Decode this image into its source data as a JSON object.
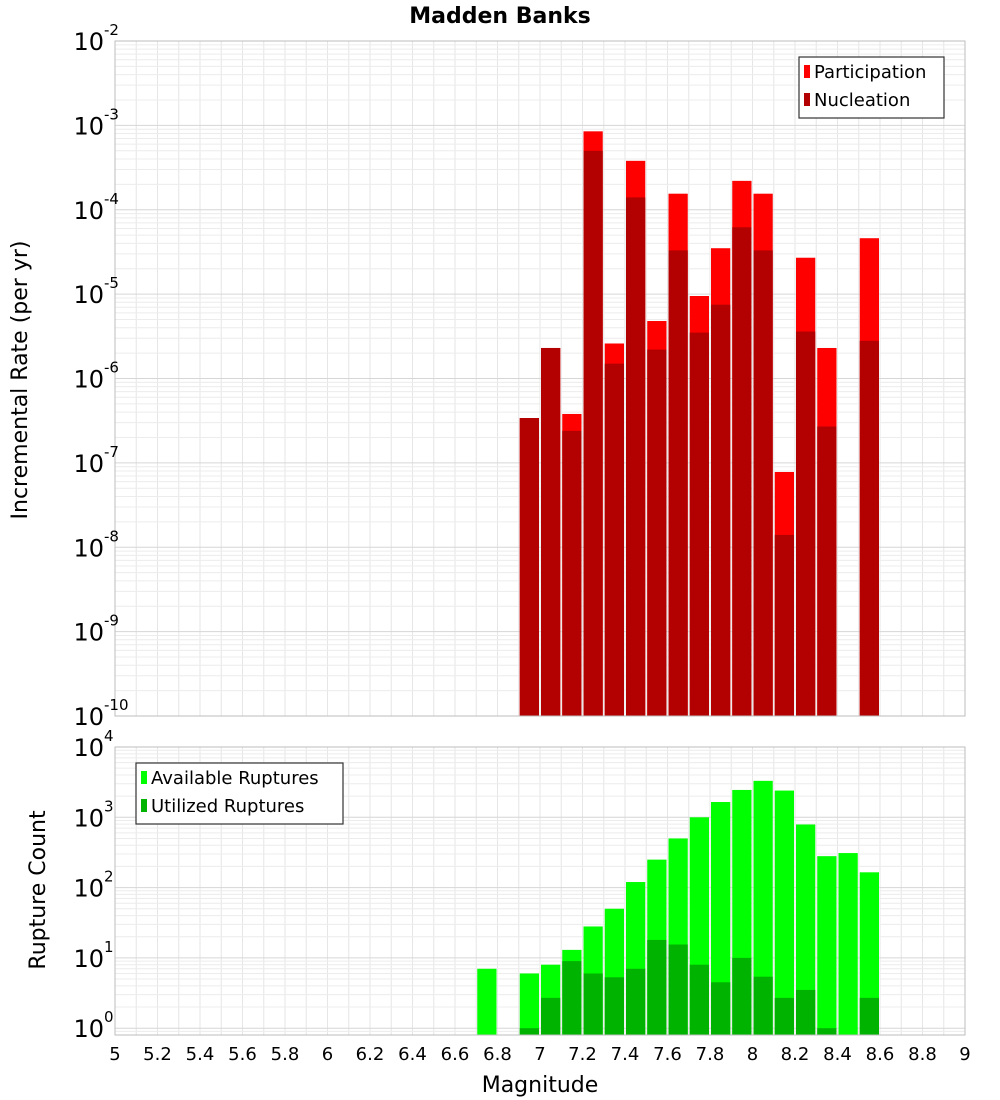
{
  "chart_data": [
    {
      "type": "bar",
      "title": "Madden Banks",
      "ylabel": "Incremental Rate (per yr)",
      "xlabel": "",
      "y_scale": "log",
      "xlim": [
        5,
        9
      ],
      "ylim": [
        1e-10,
        0.01
      ],
      "y_ticks": [
        {
          "base": "10",
          "exp": "-10",
          "value": 1e-10
        },
        {
          "base": "10",
          "exp": "-9",
          "value": 1e-09
        },
        {
          "base": "10",
          "exp": "-8",
          "value": 1e-08
        },
        {
          "base": "10",
          "exp": "-7",
          "value": 1e-07
        },
        {
          "base": "10",
          "exp": "-6",
          "value": 1e-06
        },
        {
          "base": "10",
          "exp": "-5",
          "value": 1e-05
        },
        {
          "base": "10",
          "exp": "-4",
          "value": 0.0001
        },
        {
          "base": "10",
          "exp": "-3",
          "value": 0.001
        },
        {
          "base": "10",
          "exp": "-2",
          "value": 0.01
        }
      ],
      "grid": true,
      "legend_position": "top-right",
      "magnitudes": [
        6.95,
        7.05,
        7.15,
        7.25,
        7.35,
        7.45,
        7.55,
        7.65,
        7.75,
        7.85,
        7.95,
        8.05,
        8.15,
        8.25,
        8.35,
        8.55
      ],
      "series": [
        {
          "name": "Participation",
          "color": "#ff0000",
          "values": [
            3.4e-07,
            2.3e-06,
            3.8e-07,
            0.00085,
            2.6e-06,
            0.00038,
            4.8e-06,
            0.000155,
            9.5e-06,
            3.5e-05,
            0.00022,
            0.000155,
            7.8e-08,
            2.7e-05,
            2.3e-06,
            4.6e-05
          ]
        },
        {
          "name": "Nucleation",
          "color": "#b30000",
          "values": [
            3.4e-07,
            2.3e-06,
            2.4e-07,
            0.0005,
            1.5e-06,
            0.00014,
            2.2e-06,
            3.3e-05,
            3.5e-06,
            7.5e-06,
            6.2e-05,
            3.3e-05,
            1.4e-08,
            3.6e-06,
            2.7e-07,
            2.8e-06
          ]
        }
      ]
    },
    {
      "type": "bar",
      "ylabel": "Rupture Count",
      "xlabel": "Magnitude",
      "y_scale": "log",
      "xlim": [
        5,
        9
      ],
      "ylim": [
        0.8,
        10000
      ],
      "y_ticks": [
        {
          "base": "10",
          "exp": "0",
          "value": 1
        },
        {
          "base": "10",
          "exp": "1",
          "value": 10
        },
        {
          "base": "10",
          "exp": "2",
          "value": 100
        },
        {
          "base": "10",
          "exp": "3",
          "value": 1000
        },
        {
          "base": "10",
          "exp": "4",
          "value": 10000
        }
      ],
      "x_ticks": [
        "5",
        "5.2",
        "5.4",
        "5.6",
        "5.8",
        "6",
        "6.2",
        "6.4",
        "6.6",
        "6.8",
        "7",
        "7.2",
        "7.4",
        "7.6",
        "7.8",
        "8",
        "8.2",
        "8.4",
        "8.6",
        "8.8",
        "9"
      ],
      "grid": true,
      "legend_position": "top-left",
      "magnitudes": [
        6.75,
        6.95,
        7.05,
        7.15,
        7.25,
        7.35,
        7.45,
        7.55,
        7.65,
        7.75,
        7.85,
        7.95,
        8.05,
        8.15,
        8.25,
        8.35,
        8.45,
        8.55
      ],
      "series": [
        {
          "name": "Available Ruptures",
          "color": "#00ff00",
          "values": [
            7,
            6,
            8,
            13,
            28,
            50,
            120,
            250,
            500,
            1000,
            1650,
            2450,
            3300,
            2400,
            790,
            280,
            310,
            165
          ]
        },
        {
          "name": "Utilized Ruptures",
          "color": "#00b300",
          "values": [
            0,
            1,
            2.7,
            9,
            6,
            5.3,
            7,
            18,
            15.5,
            8,
            4.5,
            10,
            5.4,
            2.7,
            3.5,
            1,
            0,
            2.7
          ]
        }
      ]
    }
  ]
}
